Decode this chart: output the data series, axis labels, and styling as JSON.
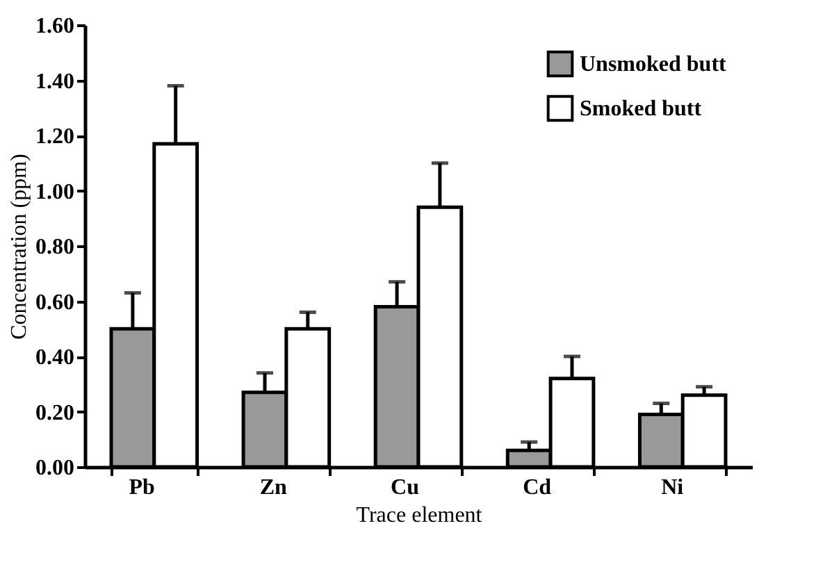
{
  "chart_data": {
    "type": "bar",
    "xlabel": "Trace element",
    "ylabel": "Concentration (ppm)",
    "categories": [
      "Pb",
      "Zn",
      "Cu",
      "Cd",
      "Ni"
    ],
    "series": [
      {
        "name": "Unsmoked butt",
        "color": "#999999",
        "values": [
          0.5,
          0.27,
          0.58,
          0.06,
          0.19
        ],
        "errors": [
          0.13,
          0.07,
          0.09,
          0.03,
          0.04
        ]
      },
      {
        "name": "Smoked butt",
        "color": "#ffffff",
        "values": [
          1.17,
          0.5,
          0.94,
          0.32,
          0.26
        ],
        "errors": [
          0.21,
          0.06,
          0.16,
          0.08,
          0.03
        ]
      }
    ],
    "ylim": [
      0,
      1.6
    ],
    "yticks": [
      {
        "value": 0,
        "label": "0.00"
      },
      {
        "value": 0.2,
        "label": "0.20"
      },
      {
        "value": 0.4,
        "label": "0.40"
      },
      {
        "value": 0.6,
        "label": "0.60"
      },
      {
        "value": 0.8,
        "label": "0.80"
      },
      {
        "value": 1.0,
        "label": "1.00"
      },
      {
        "value": 1.2,
        "label": "1.20"
      },
      {
        "value": 1.4,
        "label": "1.40"
      },
      {
        "value": 1.6,
        "label": "1.60"
      }
    ],
    "grid": false,
    "legend": "top right"
  }
}
